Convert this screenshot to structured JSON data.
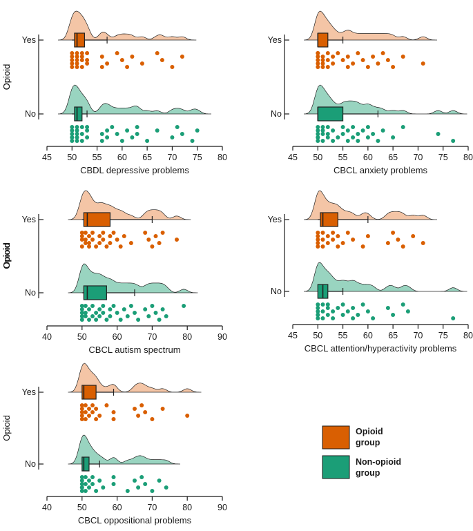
{
  "colors": {
    "opioid": "#d95f02",
    "non_opioid": "#1b9e77",
    "opioid_fill": "#f3c2a1",
    "non_opioid_fill": "#93d2bd",
    "axis": "#1a1a1a"
  },
  "legend": {
    "items": [
      {
        "line1": "Opioid",
        "line2": "group",
        "color": "#d95f02"
      },
      {
        "line1": "Non-opioid",
        "line2": "group",
        "color": "#1b9e77"
      }
    ]
  },
  "chart_data": [
    {
      "type": "raincloud",
      "title": "",
      "xlabel": "CBDL depressive problems",
      "ylabel": "Opioid",
      "xlim": [
        45,
        80
      ],
      "xticks": [
        45,
        50,
        55,
        60,
        65,
        70,
        75,
        80
      ],
      "categories": [
        "Yes",
        "No"
      ],
      "series": [
        {
          "group": "Yes",
          "box": {
            "q1": 50.5,
            "median": 51,
            "q3": 52.5,
            "whisker_low": 50,
            "whisker_high": 57
          },
          "points": [
            50,
            50,
            50,
            50,
            50,
            51,
            51,
            51,
            51,
            51,
            52,
            52,
            52,
            52,
            53,
            53,
            53,
            56,
            56,
            57,
            59,
            60,
            61,
            62,
            64,
            67,
            68,
            70,
            72
          ]
        },
        {
          "group": "No",
          "box": {
            "q1": 50.5,
            "median": 51,
            "q3": 52,
            "whisker_low": 50,
            "whisker_high": 53
          },
          "points": [
            50,
            50,
            50,
            50,
            50,
            50,
            51,
            51,
            51,
            51,
            51,
            52,
            52,
            52,
            53,
            53,
            53,
            56,
            56,
            57,
            57,
            58,
            59,
            60,
            61,
            62,
            63,
            63,
            65,
            67,
            70,
            71,
            72,
            74,
            75
          ]
        }
      ]
    },
    {
      "type": "raincloud",
      "title": "",
      "xlabel": "CBCL anxiety problems",
      "ylabel": "Opioid",
      "xlim": [
        45,
        80
      ],
      "xticks": [
        45,
        50,
        55,
        60,
        65,
        70,
        75,
        80
      ],
      "categories": [
        "Yes",
        "No"
      ],
      "series": [
        {
          "group": "Yes",
          "box": {
            "q1": 50,
            "median": 50,
            "q3": 52,
            "whisker_low": 50,
            "whisker_high": 55
          },
          "points": [
            50,
            50,
            50,
            50,
            50,
            50,
            51,
            51,
            51,
            51,
            52,
            52,
            52,
            53,
            53,
            54,
            55,
            56,
            56,
            57,
            58,
            59,
            60,
            61,
            62,
            63,
            64,
            65,
            67,
            71
          ]
        },
        {
          "group": "No",
          "box": {
            "q1": 50,
            "median": 50,
            "q3": 55,
            "whisker_low": 50,
            "whisker_high": 62
          },
          "points": [
            50,
            50,
            50,
            50,
            50,
            50,
            51,
            51,
            51,
            51,
            52,
            52,
            52,
            53,
            53,
            54,
            55,
            55,
            56,
            56,
            57,
            57,
            58,
            58,
            59,
            60,
            60,
            61,
            62,
            63,
            65,
            67,
            74,
            77
          ]
        }
      ]
    },
    {
      "type": "raincloud",
      "title": "",
      "xlabel": "CBCL autism spectrum",
      "ylabel": "Opioid",
      "xlim": [
        40,
        90
      ],
      "xticks": [
        40,
        50,
        60,
        70,
        80,
        90
      ],
      "categories": [
        "Yes",
        "No"
      ],
      "series": [
        {
          "group": "Yes",
          "box": {
            "q1": 50.5,
            "median": 51.5,
            "q3": 58,
            "whisker_low": 50,
            "whisker_high": 70
          },
          "points": [
            50,
            50,
            50,
            50,
            51,
            51,
            51,
            52,
            52,
            52,
            53,
            53,
            54,
            55,
            55,
            56,
            56,
            57,
            58,
            58,
            59,
            60,
            61,
            62,
            64,
            68,
            69,
            70,
            71,
            72,
            73,
            77
          ]
        },
        {
          "group": "No",
          "box": {
            "q1": 50.5,
            "median": 51.5,
            "q3": 57,
            "whisker_low": 50,
            "whisker_high": 65
          },
          "points": [
            50,
            50,
            50,
            50,
            50,
            51,
            51,
            51,
            52,
            52,
            53,
            53,
            54,
            54,
            55,
            55,
            56,
            56,
            57,
            58,
            58,
            59,
            60,
            61,
            62,
            63,
            64,
            65,
            66,
            68,
            69,
            70,
            71,
            72,
            73,
            74,
            79
          ]
        }
      ]
    },
    {
      "type": "raincloud",
      "title": "",
      "xlabel": "CBCL attention/hyperactivity problems",
      "ylabel": "Opioid",
      "xlim": [
        45,
        80
      ],
      "xticks": [
        45,
        50,
        55,
        60,
        65,
        70,
        75,
        80
      ],
      "categories": [
        "Yes",
        "No"
      ],
      "series": [
        {
          "group": "Yes",
          "box": {
            "q1": 50.5,
            "median": 51,
            "q3": 54,
            "whisker_low": 50,
            "whisker_high": 60
          },
          "points": [
            50,
            50,
            50,
            50,
            50,
            51,
            51,
            51,
            52,
            52,
            53,
            53,
            54,
            54,
            55,
            56,
            57,
            59,
            60,
            64,
            65,
            66,
            67,
            69,
            71
          ]
        },
        {
          "group": "No",
          "box": {
            "q1": 50,
            "median": 51,
            "q3": 52,
            "whisker_low": 50,
            "whisker_high": 55
          },
          "points": [
            50,
            50,
            50,
            50,
            50,
            50,
            51,
            51,
            51,
            52,
            52,
            52,
            53,
            53,
            54,
            55,
            55,
            56,
            57,
            57,
            58,
            59,
            60,
            61,
            64,
            65,
            67,
            68,
            77
          ]
        }
      ]
    },
    {
      "type": "raincloud",
      "title": "",
      "xlabel": "CBCL oppositional problems",
      "ylabel": "Opioid",
      "xlim": [
        40,
        90
      ],
      "xticks": [
        40,
        50,
        60,
        70,
        80,
        90
      ],
      "categories": [
        "Yes",
        "No"
      ],
      "series": [
        {
          "group": "Yes",
          "box": {
            "q1": 50,
            "median": 50.5,
            "q3": 54,
            "whisker_low": 50,
            "whisker_high": 59
          },
          "points": [
            50,
            50,
            50,
            50,
            50,
            51,
            51,
            51,
            52,
            52,
            53,
            53,
            54,
            54,
            55,
            57,
            59,
            59,
            65,
            66,
            67,
            68,
            70,
            73,
            80
          ]
        },
        {
          "group": "No",
          "box": {
            "q1": 50,
            "median": 50.5,
            "q3": 52,
            "whisker_low": 50,
            "whisker_high": 55
          },
          "points": [
            50,
            50,
            50,
            50,
            50,
            50,
            51,
            51,
            51,
            52,
            52,
            53,
            53,
            54,
            55,
            56,
            59,
            59,
            63,
            65,
            66,
            67,
            68,
            70,
            72,
            74
          ]
        }
      ]
    }
  ]
}
